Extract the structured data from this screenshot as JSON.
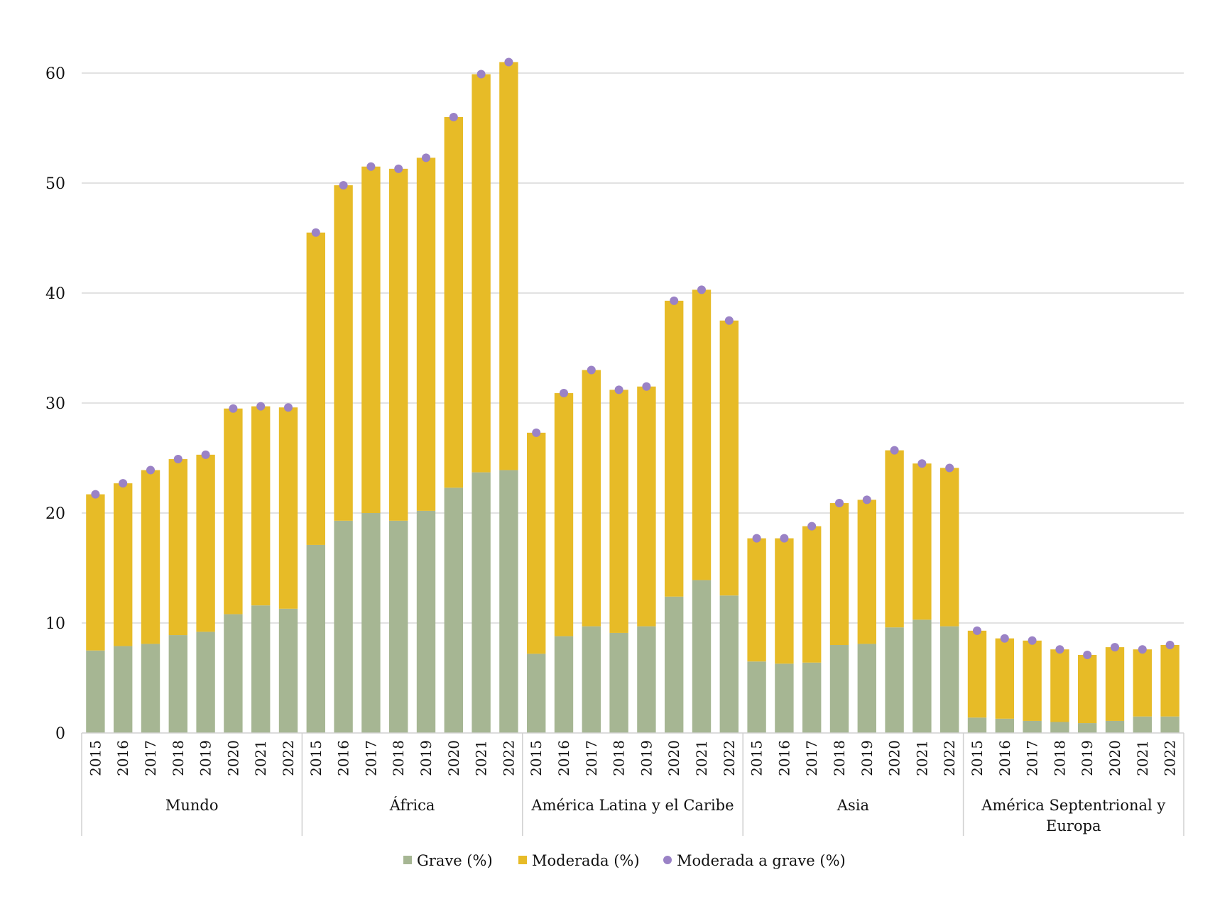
{
  "chart_data": {
    "type": "bar",
    "stacked": true,
    "title": "",
    "xlabel": "",
    "ylabel": "",
    "ylim": [
      0,
      60
    ],
    "yticks": [
      "0",
      "10",
      "20",
      "30",
      "40",
      "50",
      "60"
    ],
    "grid": true,
    "legend_position": "bottom",
    "years": [
      "2015",
      "2016",
      "2017",
      "2018",
      "2019",
      "2020",
      "2021",
      "2022"
    ],
    "groups": [
      {
        "name": "Mundo",
        "grave": [
          7.5,
          7.9,
          8.1,
          8.9,
          9.2,
          10.8,
          11.6,
          11.3
        ],
        "moderada": [
          14.2,
          14.8,
          15.8,
          16.0,
          16.1,
          18.7,
          18.1,
          18.3
        ],
        "moderada_a_grave": [
          21.7,
          22.7,
          23.9,
          24.9,
          25.3,
          29.5,
          29.7,
          29.6
        ]
      },
      {
        "name": "África",
        "grave": [
          17.1,
          19.3,
          20.0,
          19.3,
          20.2,
          22.3,
          23.7,
          23.9
        ],
        "moderada": [
          28.4,
          30.5,
          31.5,
          32.0,
          32.1,
          33.7,
          36.2,
          37.1
        ],
        "moderada_a_grave": [
          45.5,
          49.8,
          51.5,
          51.3,
          52.3,
          56.0,
          59.9,
          61.0
        ]
      },
      {
        "name": "América Latina y el Caribe",
        "grave": [
          7.2,
          8.8,
          9.7,
          9.1,
          9.7,
          12.4,
          13.9,
          12.5
        ],
        "moderada": [
          20.1,
          22.1,
          23.3,
          22.1,
          21.8,
          26.9,
          26.4,
          25.0
        ],
        "moderada_a_grave": [
          27.3,
          30.9,
          33.0,
          31.2,
          31.5,
          39.3,
          40.3,
          37.5
        ]
      },
      {
        "name": "Asia",
        "grave": [
          6.5,
          6.3,
          6.4,
          8.0,
          8.1,
          9.6,
          10.3,
          9.7
        ],
        "moderada": [
          11.2,
          11.4,
          12.4,
          12.9,
          13.1,
          16.1,
          14.2,
          14.4
        ],
        "moderada_a_grave": [
          17.7,
          17.7,
          18.8,
          20.9,
          21.2,
          25.7,
          24.5,
          24.1
        ]
      },
      {
        "name": "América Septentrional y Europa",
        "name_lines": [
          "América Septentrional y",
          "Europa"
        ],
        "grave": [
          1.4,
          1.3,
          1.1,
          1.0,
          0.9,
          1.1,
          1.5,
          1.5
        ],
        "moderada": [
          7.9,
          7.3,
          7.3,
          6.6,
          6.2,
          6.7,
          6.1,
          6.5
        ],
        "moderada_a_grave": [
          9.3,
          8.6,
          8.4,
          7.6,
          7.1,
          7.8,
          7.6,
          8.0
        ]
      }
    ],
    "legend": [
      {
        "key": "grave",
        "label": "Grave (%)",
        "color": "#a6b693",
        "shape": "square"
      },
      {
        "key": "moderada",
        "label": "Moderada (%)",
        "color": "#e7bb27",
        "shape": "square"
      },
      {
        "key": "moderada_a_grave",
        "label": "Moderada a grave (%)",
        "color": "#9a82c6",
        "shape": "circle"
      }
    ]
  }
}
